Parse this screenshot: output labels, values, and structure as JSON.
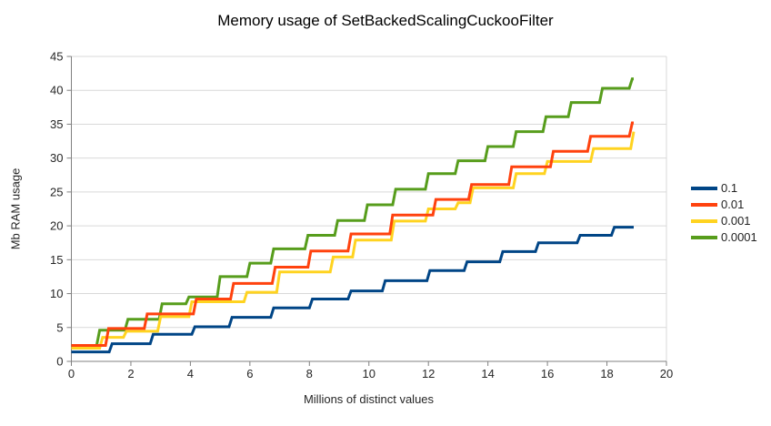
{
  "chart_data": {
    "type": "line",
    "title": "Memory usage of SetBackedScalingCuckooFilter",
    "xlabel": "Millions of distinct values",
    "ylabel": "Mb RAM usage",
    "xlim": [
      0,
      20
    ],
    "ylim": [
      0,
      45
    ],
    "x_ticks": [
      0,
      2,
      4,
      6,
      8,
      10,
      12,
      14,
      16,
      18,
      20
    ],
    "y_ticks": [
      0,
      5,
      10,
      15,
      20,
      25,
      30,
      35,
      40,
      45
    ],
    "grid": "horizontal-only",
    "legend_position": "right",
    "line_style": "stepped",
    "x_end": 18.9,
    "series": [
      {
        "name": "0.1",
        "color": "#004586",
        "steps": [
          [
            0,
            1.4
          ],
          [
            1.27,
            2.6
          ],
          [
            2.65,
            4.0
          ],
          [
            4.05,
            5.1
          ],
          [
            5.3,
            6.5
          ],
          [
            6.7,
            7.9
          ],
          [
            8.0,
            9.2
          ],
          [
            9.3,
            10.4
          ],
          [
            10.45,
            11.9
          ],
          [
            11.95,
            13.4
          ],
          [
            13.2,
            14.7
          ],
          [
            14.4,
            16.2
          ],
          [
            15.6,
            17.5
          ],
          [
            17.0,
            18.6
          ],
          [
            18.15,
            19.8
          ]
        ]
      },
      {
        "name": "0.01",
        "color": "#FF420E",
        "steps": [
          [
            0,
            2.35
          ],
          [
            1.15,
            4.85
          ],
          [
            2.45,
            7.0
          ],
          [
            4.1,
            9.2
          ],
          [
            5.35,
            11.5
          ],
          [
            6.75,
            13.9
          ],
          [
            7.95,
            16.3
          ],
          [
            9.3,
            18.8
          ],
          [
            10.7,
            21.6
          ],
          [
            12.15,
            23.9
          ],
          [
            13.35,
            26.1
          ],
          [
            14.7,
            28.7
          ],
          [
            16.1,
            31.0
          ],
          [
            17.35,
            33.2
          ],
          [
            18.75,
            35.2
          ]
        ]
      },
      {
        "name": "0.001",
        "color": "#FFD320",
        "steps": [
          [
            0,
            1.95
          ],
          [
            0.95,
            3.55
          ],
          [
            1.75,
            4.45
          ],
          [
            2.9,
            6.6
          ],
          [
            3.95,
            8.8
          ],
          [
            5.8,
            10.2
          ],
          [
            6.9,
            13.2
          ],
          [
            8.7,
            15.4
          ],
          [
            9.45,
            17.9
          ],
          [
            10.75,
            20.7
          ],
          [
            11.9,
            22.5
          ],
          [
            12.9,
            23.4
          ],
          [
            13.4,
            25.6
          ],
          [
            14.85,
            27.7
          ],
          [
            15.9,
            29.5
          ],
          [
            17.45,
            31.4
          ],
          [
            18.8,
            33.9
          ]
        ]
      },
      {
        "name": "0.0001",
        "color": "#579D1C",
        "steps": [
          [
            0,
            2.35
          ],
          [
            0.85,
            4.6
          ],
          [
            1.8,
            6.2
          ],
          [
            2.95,
            8.5
          ],
          [
            3.85,
            9.5
          ],
          [
            4.9,
            12.5
          ],
          [
            5.9,
            14.5
          ],
          [
            6.7,
            16.6
          ],
          [
            7.85,
            18.6
          ],
          [
            8.85,
            20.8
          ],
          [
            9.85,
            23.1
          ],
          [
            10.8,
            25.4
          ],
          [
            11.9,
            27.7
          ],
          [
            12.9,
            29.6
          ],
          [
            13.9,
            31.7
          ],
          [
            14.85,
            33.9
          ],
          [
            15.85,
            36.1
          ],
          [
            16.7,
            38.2
          ],
          [
            17.75,
            40.3
          ],
          [
            18.75,
            41.7
          ]
        ]
      }
    ],
    "colors": {
      "grid": "#d9d9d9",
      "axis": "#808080",
      "plot_border": "#d9d9d9",
      "tick_text": "#262626",
      "background": "#ffffff"
    }
  }
}
